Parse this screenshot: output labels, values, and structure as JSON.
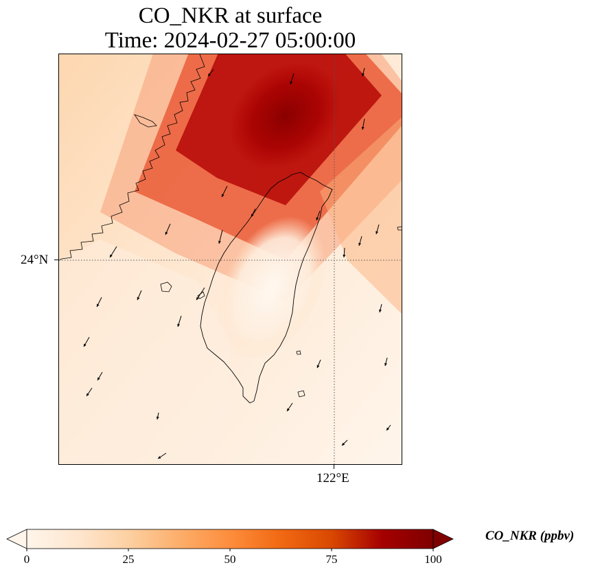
{
  "title": {
    "line1": "CO_NKR at surface",
    "line2": "Time: 2024-02-27 05:00:00"
  },
  "axes": {
    "lat_tick_label": "24°N",
    "lon_tick_label": "122°E",
    "gridlines": "dotted"
  },
  "colorbar": {
    "label": "CO_NKR (ppbv)",
    "ticks": [
      "0",
      "25",
      "50",
      "75",
      "100"
    ],
    "min": 0,
    "max": 100,
    "extend": "both",
    "colormap": [
      "#fff5eb",
      "#fee6ce",
      "#fdd0a2",
      "#fdae6b",
      "#fd8d3c",
      "#f16913",
      "#d94801",
      "#a50000",
      "#7f0000"
    ]
  },
  "map": {
    "field": "CO_NKR",
    "level": "surface",
    "vectors": "wind arrows"
  }
}
